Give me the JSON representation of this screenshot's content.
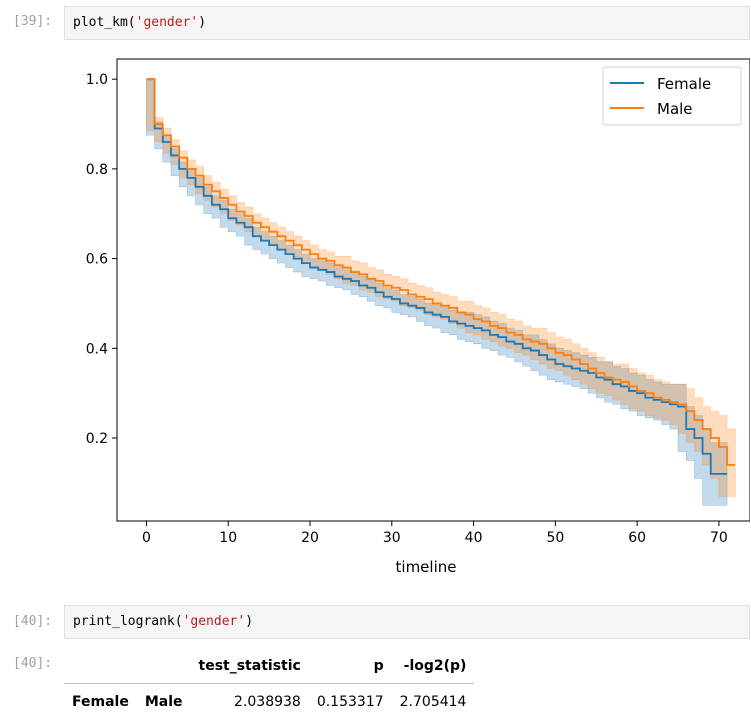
{
  "cells": [
    {
      "prompt": "[39]:",
      "code_fn": "plot_km(",
      "code_arg": "'gender'",
      "code_end": ")"
    },
    {
      "prompt": "[40]:",
      "code_fn": "print_logrank(",
      "code_arg": "'gender'",
      "code_end": ")"
    },
    {
      "prompt": "[40]:"
    }
  ],
  "colors": {
    "female": "#1f77b4",
    "male": "#ff7f0e"
  },
  "chart_data": {
    "type": "line",
    "step": true,
    "xlabel": "timeline",
    "ylabel": "",
    "xlim": [
      -3.6,
      73.8
    ],
    "ylim": [
      0.015,
      1.045
    ],
    "xticks": [
      0,
      10,
      20,
      30,
      40,
      50,
      60,
      70
    ],
    "yticks": [
      0.2,
      0.4,
      0.6,
      0.8,
      1.0
    ],
    "ytick_labels": [
      "0.2",
      "0.4",
      "0.6",
      "0.8",
      "1.0"
    ],
    "legend": "top-right",
    "grid": false,
    "series": [
      {
        "name": "Female",
        "x": [
          0,
          1,
          2,
          3,
          4,
          5,
          6,
          7,
          8,
          9,
          10,
          11,
          12,
          13,
          14,
          15,
          16,
          17,
          18,
          19,
          20,
          21,
          22,
          23,
          24,
          25,
          26,
          27,
          28,
          29,
          30,
          31,
          32,
          33,
          34,
          35,
          36,
          37,
          38,
          39,
          40,
          41,
          42,
          43,
          44,
          45,
          46,
          47,
          48,
          49,
          50,
          51,
          52,
          53,
          54,
          55,
          56,
          57,
          58,
          59,
          60,
          61,
          62,
          63,
          64,
          65,
          66,
          67,
          68,
          69,
          70,
          71
        ],
        "y": [
          1.0,
          0.89,
          0.86,
          0.83,
          0.8,
          0.78,
          0.76,
          0.74,
          0.72,
          0.71,
          0.69,
          0.68,
          0.67,
          0.65,
          0.64,
          0.63,
          0.62,
          0.61,
          0.6,
          0.59,
          0.58,
          0.575,
          0.57,
          0.56,
          0.555,
          0.55,
          0.54,
          0.535,
          0.525,
          0.515,
          0.51,
          0.5,
          0.495,
          0.49,
          0.48,
          0.475,
          0.47,
          0.46,
          0.455,
          0.45,
          0.445,
          0.44,
          0.43,
          0.425,
          0.415,
          0.41,
          0.4,
          0.395,
          0.385,
          0.375,
          0.365,
          0.36,
          0.355,
          0.35,
          0.345,
          0.335,
          0.33,
          0.32,
          0.315,
          0.305,
          0.3,
          0.29,
          0.285,
          0.28,
          0.275,
          0.27,
          0.22,
          0.2,
          0.165,
          0.12,
          0.12,
          0.12
        ],
        "ci_lower": [
          1.0,
          0.875,
          0.845,
          0.815,
          0.785,
          0.76,
          0.74,
          0.72,
          0.7,
          0.69,
          0.67,
          0.66,
          0.65,
          0.63,
          0.62,
          0.61,
          0.6,
          0.59,
          0.58,
          0.57,
          0.56,
          0.555,
          0.55,
          0.54,
          0.535,
          0.53,
          0.52,
          0.515,
          0.505,
          0.495,
          0.49,
          0.48,
          0.475,
          0.47,
          0.46,
          0.45,
          0.445,
          0.435,
          0.43,
          0.42,
          0.415,
          0.41,
          0.4,
          0.395,
          0.385,
          0.38,
          0.37,
          0.36,
          0.35,
          0.34,
          0.33,
          0.325,
          0.32,
          0.315,
          0.31,
          0.3,
          0.29,
          0.28,
          0.275,
          0.265,
          0.26,
          0.25,
          0.245,
          0.24,
          0.23,
          0.22,
          0.17,
          0.15,
          0.11,
          0.05,
          0.05,
          0.05
        ],
        "ci_upper": [
          1.0,
          0.905,
          0.875,
          0.845,
          0.815,
          0.8,
          0.78,
          0.76,
          0.74,
          0.73,
          0.71,
          0.7,
          0.69,
          0.67,
          0.66,
          0.65,
          0.64,
          0.63,
          0.62,
          0.61,
          0.6,
          0.595,
          0.59,
          0.58,
          0.575,
          0.57,
          0.56,
          0.555,
          0.545,
          0.535,
          0.53,
          0.52,
          0.515,
          0.51,
          0.5,
          0.5,
          0.495,
          0.485,
          0.48,
          0.48,
          0.475,
          0.47,
          0.46,
          0.455,
          0.445,
          0.44,
          0.43,
          0.43,
          0.42,
          0.41,
          0.4,
          0.395,
          0.39,
          0.385,
          0.38,
          0.37,
          0.37,
          0.36,
          0.355,
          0.345,
          0.34,
          0.33,
          0.325,
          0.32,
          0.32,
          0.32,
          0.27,
          0.25,
          0.22,
          0.19,
          0.19,
          0.19
        ]
      },
      {
        "name": "Male",
        "x": [
          0,
          1,
          2,
          3,
          4,
          5,
          6,
          7,
          8,
          9,
          10,
          11,
          12,
          13,
          14,
          15,
          16,
          17,
          18,
          19,
          20,
          21,
          22,
          23,
          24,
          25,
          26,
          27,
          28,
          29,
          30,
          31,
          32,
          33,
          34,
          35,
          36,
          37,
          38,
          39,
          40,
          41,
          42,
          43,
          44,
          45,
          46,
          47,
          48,
          49,
          50,
          51,
          52,
          53,
          54,
          55,
          56,
          57,
          58,
          59,
          60,
          61,
          62,
          63,
          64,
          65,
          66,
          67,
          68,
          69,
          70,
          71,
          72
        ],
        "y": [
          1.0,
          0.9,
          0.875,
          0.85,
          0.825,
          0.8,
          0.785,
          0.765,
          0.75,
          0.735,
          0.72,
          0.705,
          0.695,
          0.68,
          0.67,
          0.66,
          0.65,
          0.64,
          0.63,
          0.62,
          0.61,
          0.6,
          0.595,
          0.585,
          0.58,
          0.57,
          0.565,
          0.555,
          0.55,
          0.54,
          0.535,
          0.53,
          0.52,
          0.515,
          0.51,
          0.5,
          0.495,
          0.49,
          0.48,
          0.475,
          0.465,
          0.46,
          0.45,
          0.445,
          0.435,
          0.43,
          0.42,
          0.415,
          0.41,
          0.4,
          0.39,
          0.385,
          0.375,
          0.365,
          0.355,
          0.345,
          0.335,
          0.33,
          0.325,
          0.315,
          0.305,
          0.3,
          0.29,
          0.285,
          0.28,
          0.275,
          0.26,
          0.24,
          0.22,
          0.2,
          0.18,
          0.14,
          0.14
        ],
        "ci_lower": [
          1.0,
          0.885,
          0.86,
          0.835,
          0.81,
          0.78,
          0.765,
          0.745,
          0.73,
          0.715,
          0.7,
          0.685,
          0.675,
          0.66,
          0.65,
          0.64,
          0.63,
          0.62,
          0.61,
          0.6,
          0.59,
          0.58,
          0.575,
          0.565,
          0.555,
          0.545,
          0.54,
          0.53,
          0.525,
          0.515,
          0.51,
          0.505,
          0.495,
          0.49,
          0.485,
          0.475,
          0.47,
          0.465,
          0.455,
          0.445,
          0.435,
          0.43,
          0.42,
          0.415,
          0.405,
          0.4,
          0.39,
          0.385,
          0.375,
          0.365,
          0.355,
          0.35,
          0.34,
          0.33,
          0.32,
          0.31,
          0.3,
          0.295,
          0.285,
          0.275,
          0.265,
          0.26,
          0.25,
          0.245,
          0.24,
          0.23,
          0.21,
          0.19,
          0.17,
          0.14,
          0.11,
          0.07,
          0.07
        ],
        "ci_upper": [
          1.0,
          0.915,
          0.89,
          0.865,
          0.84,
          0.82,
          0.805,
          0.785,
          0.77,
          0.755,
          0.74,
          0.725,
          0.715,
          0.7,
          0.69,
          0.68,
          0.67,
          0.66,
          0.65,
          0.64,
          0.63,
          0.62,
          0.615,
          0.605,
          0.605,
          0.595,
          0.59,
          0.58,
          0.575,
          0.565,
          0.56,
          0.555,
          0.545,
          0.54,
          0.535,
          0.525,
          0.52,
          0.515,
          0.505,
          0.505,
          0.495,
          0.49,
          0.48,
          0.475,
          0.465,
          0.46,
          0.45,
          0.445,
          0.445,
          0.435,
          0.425,
          0.42,
          0.41,
          0.4,
          0.39,
          0.38,
          0.37,
          0.365,
          0.365,
          0.355,
          0.345,
          0.34,
          0.33,
          0.325,
          0.32,
          0.32,
          0.31,
          0.29,
          0.27,
          0.26,
          0.25,
          0.22,
          0.22
        ]
      }
    ]
  },
  "logrank_table": {
    "columns": [
      "",
      "",
      "test_statistic",
      "p",
      "-log2(p)"
    ],
    "rows": [
      {
        "index": [
          "Female",
          "Male"
        ],
        "values": [
          "2.038938",
          "0.153317",
          "2.705414"
        ]
      }
    ]
  }
}
